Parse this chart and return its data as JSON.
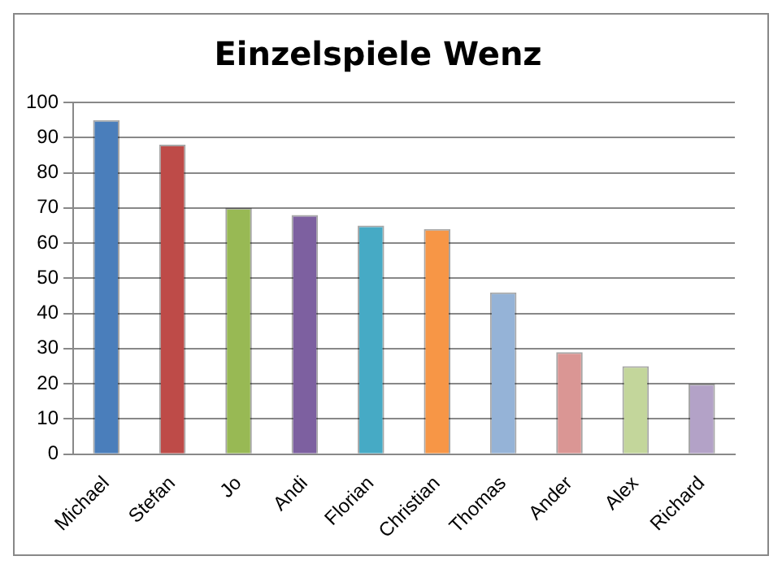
{
  "chart_data": {
    "type": "bar",
    "title": "Einzelspiele Wenz",
    "categories": [
      "Michael",
      "Stefan",
      "Jo",
      "Andi",
      "Florian",
      "Christian",
      "Thomas",
      "Ander",
      "Alex",
      "Richard"
    ],
    "values": [
      95,
      88,
      70,
      68,
      65,
      64,
      46,
      29,
      25,
      20
    ],
    "colors": [
      "#4a7ebb",
      "#be4b48",
      "#98b954",
      "#7d60a0",
      "#46aac5",
      "#f79646",
      "#95b3d7",
      "#da9694",
      "#c3d69b",
      "#b3a2c7"
    ],
    "ylim": [
      0,
      100
    ],
    "yticks": [
      0,
      10,
      20,
      30,
      40,
      50,
      60,
      70,
      80,
      90,
      100
    ],
    "grid": "y",
    "legend": false
  }
}
